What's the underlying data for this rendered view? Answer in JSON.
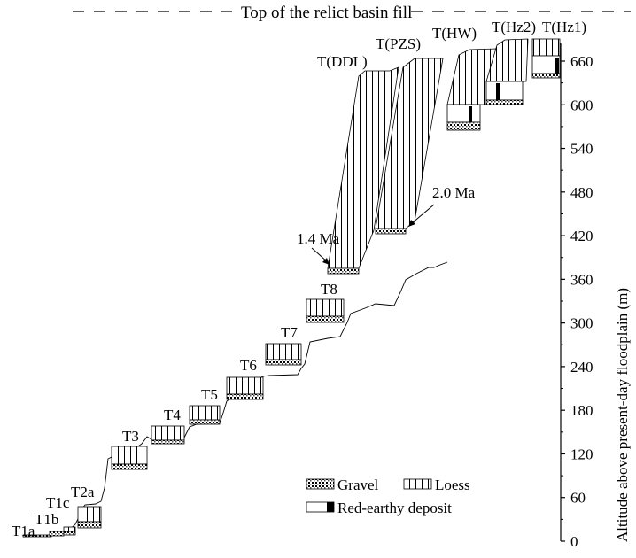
{
  "chart_data": {
    "type": "diagram",
    "title": "Top of the relict basin fill",
    "ylabel": "Altitude  above  present-day floodplain (m)",
    "ylim": [
      0,
      680
    ],
    "yticks": [
      0,
      60,
      120,
      180,
      240,
      300,
      360,
      420,
      480,
      540,
      600,
      660
    ],
    "terraces": [
      {
        "label": "T1a",
        "base": 0,
        "top": 3
      },
      {
        "label": "T1b",
        "base": 3,
        "top": 10
      },
      {
        "label": "T1c",
        "base": 10,
        "top": 20
      },
      {
        "label": "T2a",
        "base": 20,
        "top": 50
      },
      {
        "label": "T3",
        "base": 100,
        "top": 130
      },
      {
        "label": "T4",
        "base": 136,
        "top": 158
      },
      {
        "label": "T5",
        "base": 161,
        "top": 186
      },
      {
        "label": "T6",
        "base": 192,
        "top": 221
      },
      {
        "label": "T7",
        "base": 240,
        "top": 270
      },
      {
        "label": "T8",
        "base": 300,
        "top": 332
      },
      {
        "label": "T(DDL)",
        "base": 371,
        "top": 652
      },
      {
        "label": "T(PZS)",
        "base": 423,
        "top": 660
      },
      {
        "label": "T(HW)",
        "base": 565,
        "top": 673
      },
      {
        "label": "T(Hz2)",
        "base": 604,
        "top": 680
      },
      {
        "label": "T(Hz1)",
        "base": 637,
        "top": 683
      }
    ],
    "annotations": [
      "1.4 Ma",
      "2.0 Ma"
    ],
    "legend": [
      "Gravel",
      "Loess",
      "Red-earthy deposit"
    ]
  }
}
